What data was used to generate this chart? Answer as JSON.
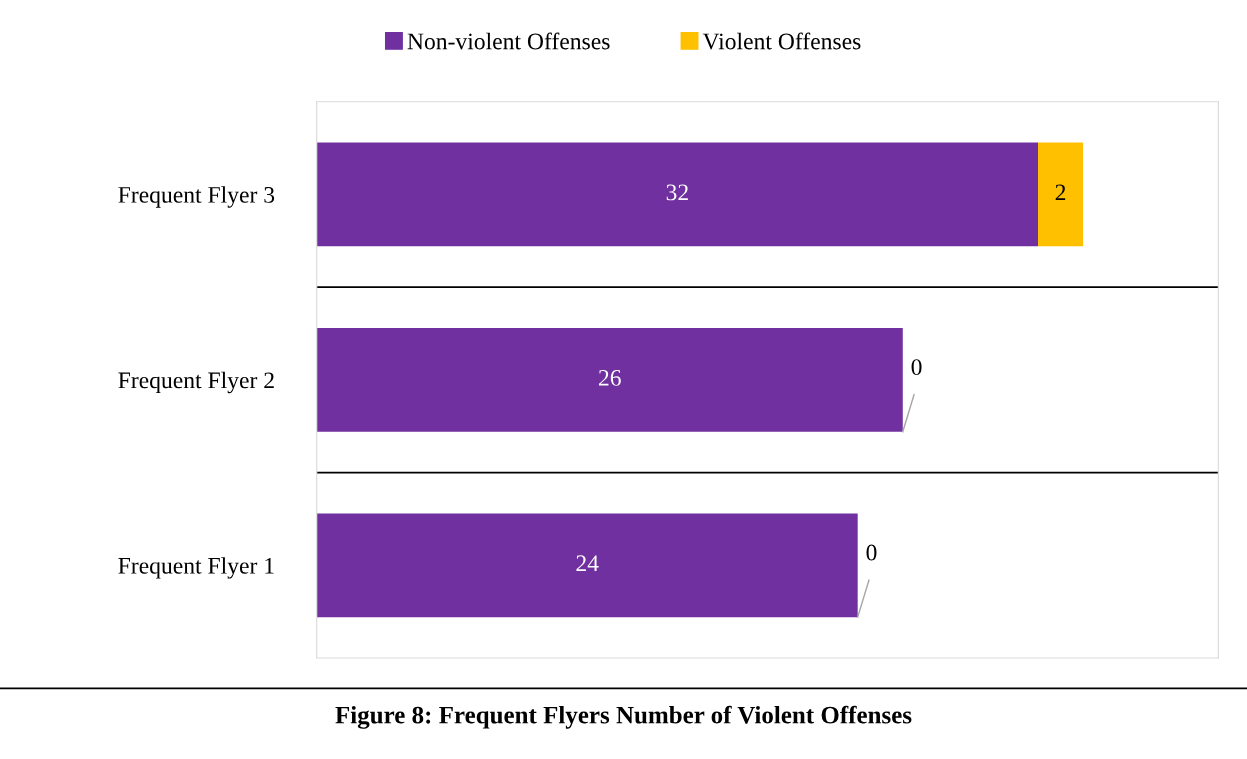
{
  "chart_data": {
    "type": "bar",
    "orientation": "horizontal",
    "stacked": true,
    "categories": [
      "Frequent Flyer 3",
      "Frequent Flyer 2",
      "Frequent Flyer 1"
    ],
    "series": [
      {
        "name": "Non-violent Offenses",
        "color": "#7030a0",
        "values": [
          32,
          26,
          24
        ]
      },
      {
        "name": "Violent Offenses",
        "color": "#ffc000",
        "values": [
          2,
          0,
          0
        ]
      }
    ],
    "xlim": [
      0,
      40
    ],
    "data_labels": true,
    "grid": "y",
    "legend": "top",
    "tick_labels": "y",
    "annotations": [
      "Figure 8: Frequent Flyers Number of Violent Offenses"
    ]
  }
}
